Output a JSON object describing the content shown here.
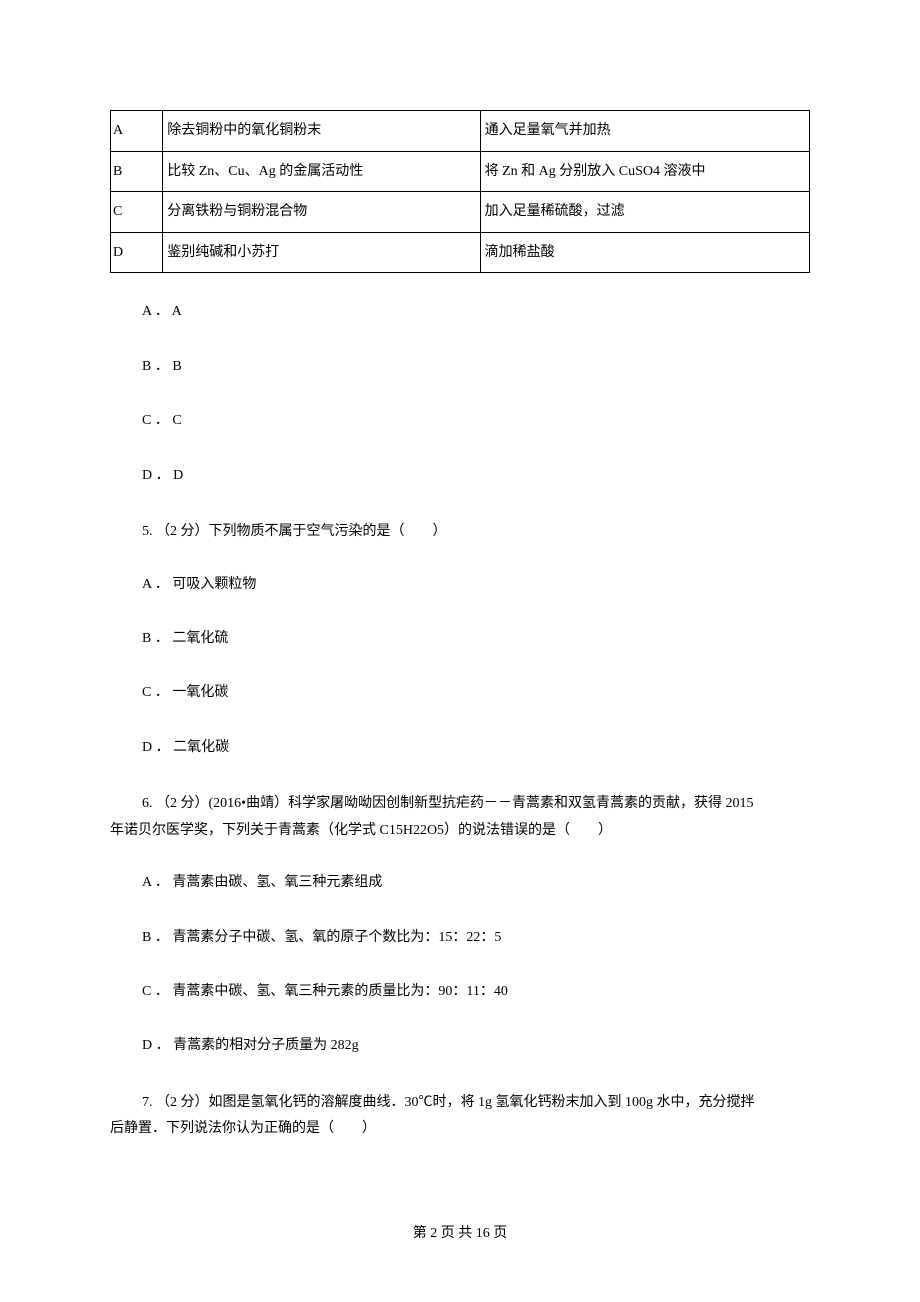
{
  "table": {
    "rows": [
      {
        "label": "A",
        "desc": "除去铜粉中的氧化铜粉末",
        "method": "通入足量氧气并加热"
      },
      {
        "label": "B",
        "desc": "比较 Zn、Cu、Ag 的金属活动性",
        "method": "将 Zn 和 Ag 分别放入 CuSO4 溶液中"
      },
      {
        "label": "C",
        "desc": "分离铁粉与铜粉混合物",
        "method": "加入足量稀硫酸，过滤"
      },
      {
        "label": "D",
        "desc": "鉴别纯碱和小苏打",
        "method": "滴加稀盐酸"
      }
    ]
  },
  "options_abcd": {
    "a": "A ． A",
    "b": "B ． B",
    "c": "C ． C",
    "d": "D ． D"
  },
  "q5": {
    "stem": "5. （2 分）下列物质不属于空气污染的是（　　）",
    "a": "A ． 可吸入颗粒物",
    "b": "B ． 二氧化硫",
    "c": "C ． 一氧化碳",
    "d": "D ． 二氧化碳"
  },
  "q6": {
    "stem_l1": "6. （2 分）(2016•曲靖）科学家屠呦呦因创制新型抗疟药－－青蒿素和双氢青蒿素的贡献，获得 2015",
    "stem_l2": "年诺贝尔医学奖，下列关于青蒿素（化学式 C15H22O5）的说法错误的是（　　）",
    "a": "A ． 青蒿素由碳、氢、氧三种元素组成",
    "b": "B ． 青蒿素分子中碳、氢、氧的原子个数比为：15：22：5",
    "c": "C ． 青蒿素中碳、氢、氧三种元素的质量比为：90：11：40",
    "d": "D ． 青蒿素的相对分子质量为 282g"
  },
  "q7": {
    "stem_l1": "7. （2 分）如图是氢氧化钙的溶解度曲线．30℃时，将 1g 氢氧化钙粉末加入到 100g 水中，充分搅拌",
    "stem_l2": "后静置．下列说法你认为正确的是（　　）"
  },
  "footer": "第 2 页 共 16 页"
}
